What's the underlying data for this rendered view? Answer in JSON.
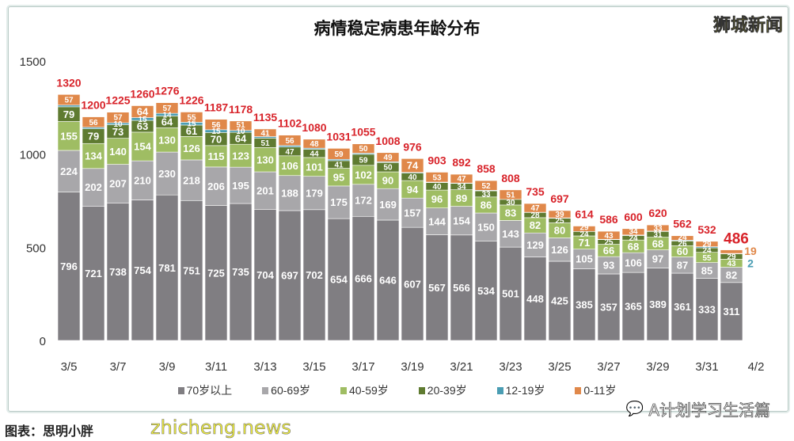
{
  "logo_text": "狮城新闻",
  "wechat_account": "A计划学习生活篇",
  "caption": "图表：思明小胖",
  "watermark": "zhicheng.news",
  "chart_data": {
    "type": "bar",
    "stacked": true,
    "title": "病情稳定病患年龄分布",
    "xlabel": "",
    "ylabel": "",
    "ylim": [
      0,
      1500
    ],
    "yticks": [
      0,
      500,
      1000,
      1500
    ],
    "grid": false,
    "legend": "bottom",
    "categories": [
      "3/5",
      "3/6",
      "3/7",
      "3/8",
      "3/9",
      "3/10",
      "3/11",
      "3/12",
      "3/13",
      "3/14",
      "3/15",
      "3/16",
      "3/17",
      "3/18",
      "3/19",
      "3/20",
      "3/21",
      "3/22",
      "3/23",
      "3/24",
      "3/25",
      "3/26",
      "3/27",
      "3/28",
      "3/29",
      "3/30",
      "3/31",
      "4/1"
    ],
    "xtick_labels": [
      "3/5",
      "3/7",
      "3/9",
      "3/11",
      "3/13",
      "3/15",
      "3/17",
      "3/19",
      "3/21",
      "3/23",
      "3/25",
      "3/27",
      "3/29",
      "3/31",
      "4/2"
    ],
    "series": [
      {
        "name": "70岁以上",
        "color": "#807e82",
        "values": [
          796,
          721,
          738,
          754,
          781,
          751,
          725,
          735,
          704,
          697,
          702,
          654,
          666,
          646,
          607,
          567,
          566,
          534,
          501,
          448,
          425,
          385,
          357,
          365,
          389,
          361,
          333,
          311
        ]
      },
      {
        "name": "60-69岁",
        "color": "#a8a7aa",
        "values": [
          224,
          202,
          207,
          210,
          230,
          218,
          206,
          195,
          201,
          188,
          179,
          175,
          172,
          169,
          157,
          144,
          154,
          150,
          143,
          129,
          126,
          105,
          93,
          106,
          97,
          87,
          85,
          82
        ]
      },
      {
        "name": "40-59岁",
        "color": "#9fbd63",
        "values": [
          155,
          134,
          140,
          154,
          130,
          126,
          115,
          123,
          130,
          106,
          101,
          95,
          102,
          90,
          94,
          96,
          89,
          86,
          83,
          82,
          80,
          71,
          66,
          68,
          68,
          60,
          55,
          43
        ]
      },
      {
        "name": "20-39岁",
        "color": "#5f7b31",
        "values": [
          79,
          79,
          73,
          63,
          64,
          61,
          70,
          64,
          51,
          47,
          44,
          41,
          59,
          50,
          40,
          40,
          34,
          33,
          30,
          28,
          25,
          24,
          25,
          24,
          31,
          26,
          24,
          29
        ]
      },
      {
        "name": "12-19岁",
        "color": "#4a9db3",
        "values": [
          9,
          8,
          10,
          15,
          14,
          15,
          15,
          10,
          8,
          8,
          6,
          7,
          6,
          4,
          4,
          3,
          2,
          3,
          0,
          1,
          2,
          0,
          2,
          3,
          2,
          4,
          6,
          2
        ]
      },
      {
        "name": "0-11岁",
        "color": "#e0884a",
        "values": [
          57,
          56,
          57,
          64,
          57,
          55,
          56,
          51,
          41,
          56,
          48,
          59,
          50,
          49,
          74,
          53,
          47,
          52,
          51,
          47,
          39,
          29,
          43,
          34,
          33,
          24,
          29,
          19
        ]
      }
    ],
    "totals": [
      1320,
      1200,
      1225,
      1260,
      1276,
      1226,
      1187,
      1178,
      1135,
      1102,
      1080,
      1031,
      1055,
      1008,
      976,
      903,
      892,
      858,
      808,
      735,
      697,
      614,
      586,
      600,
      620,
      562,
      532,
      486
    ],
    "total_color": "#d8232a"
  }
}
